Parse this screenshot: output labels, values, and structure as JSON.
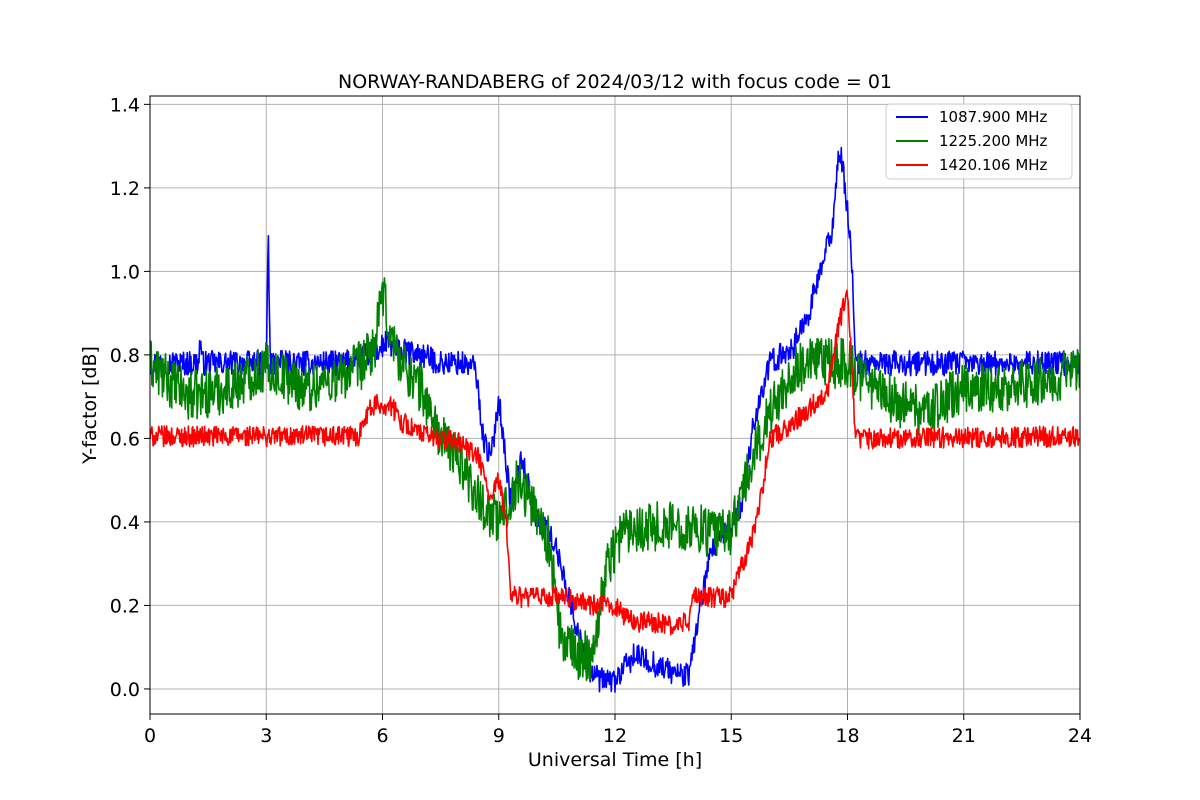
{
  "chart_data": {
    "type": "line",
    "title": "NORWAY-RANDABERG of 2024/03/12 with focus code = 01",
    "xlabel": "Universal Time [h]",
    "ylabel": "Y-factor [dB]",
    "xlim": [
      0,
      24
    ],
    "ylim": [
      -0.06,
      1.42
    ],
    "xticks": [
      0,
      3,
      6,
      9,
      12,
      15,
      18,
      21,
      24
    ],
    "xtick_labels": [
      "0",
      "3",
      "6",
      "9",
      "12",
      "15",
      "18",
      "21",
      "24"
    ],
    "yticks": [
      0.0,
      0.2,
      0.4,
      0.6,
      0.8,
      1.0,
      1.2,
      1.4
    ],
    "ytick_labels": [
      "0.0",
      "0.2",
      "0.4",
      "0.6",
      "0.8",
      "1.0",
      "1.2",
      "1.4"
    ],
    "grid": true,
    "legend_position": "top-right",
    "series": [
      {
        "name": "1087.900 MHz",
        "color": "#0000ff",
        "noise": 0.03,
        "x": [
          0,
          0.3,
          1.25,
          1.3,
          1.35,
          3.0,
          3.05,
          3.1,
          5.0,
          5.6,
          5.9,
          6.1,
          6.4,
          7.0,
          7.5,
          8.0,
          8.4,
          8.6,
          8.8,
          9.0,
          9.3,
          9.6,
          10.0,
          10.3,
          10.6,
          11.0,
          11.3,
          11.6,
          12.0,
          12.5,
          13.0,
          13.5,
          13.9,
          14.2,
          14.5,
          15.0,
          15.3,
          15.6,
          16.0,
          16.3,
          16.6,
          17.0,
          17.3,
          17.6,
          17.8,
          18.0,
          18.1,
          18.2,
          24
        ],
        "y": [
          0.78,
          0.78,
          0.78,
          0.84,
          0.78,
          0.78,
          1.1,
          0.78,
          0.78,
          0.8,
          0.81,
          0.83,
          0.81,
          0.8,
          0.78,
          0.78,
          0.77,
          0.6,
          0.55,
          0.7,
          0.45,
          0.55,
          0.4,
          0.38,
          0.3,
          0.15,
          0.05,
          0.02,
          0.02,
          0.08,
          0.06,
          0.04,
          0.03,
          0.2,
          0.33,
          0.39,
          0.45,
          0.65,
          0.78,
          0.8,
          0.82,
          0.9,
          1.0,
          1.1,
          1.3,
          1.15,
          1.05,
          0.78,
          0.78
        ]
      },
      {
        "name": "1225.200 MHz",
        "color": "#008000",
        "noise": 0.06,
        "x": [
          0,
          0.3,
          1.0,
          2.0,
          3.0,
          4.0,
          5.0,
          5.5,
          5.8,
          6.0,
          6.2,
          6.5,
          7.0,
          7.5,
          8.0,
          8.5,
          9.0,
          9.5,
          10.0,
          10.3,
          10.6,
          11.0,
          11.4,
          11.8,
          12.2,
          12.5,
          13.0,
          13.5,
          14.0,
          14.5,
          15.0,
          15.4,
          15.8,
          16.2,
          16.6,
          17.0,
          17.5,
          18.0,
          18.2,
          19.0,
          20.0,
          21.0,
          22.0,
          23.0,
          24
        ],
        "y": [
          0.78,
          0.75,
          0.7,
          0.72,
          0.77,
          0.72,
          0.75,
          0.78,
          0.82,
          0.95,
          0.85,
          0.78,
          0.72,
          0.6,
          0.55,
          0.45,
          0.4,
          0.5,
          0.42,
          0.35,
          0.12,
          0.08,
          0.08,
          0.3,
          0.38,
          0.39,
          0.39,
          0.39,
          0.39,
          0.37,
          0.38,
          0.5,
          0.62,
          0.7,
          0.76,
          0.78,
          0.78,
          0.78,
          0.76,
          0.7,
          0.66,
          0.72,
          0.72,
          0.74,
          0.76
        ]
      },
      {
        "name": "1420.106 MHz",
        "color": "#ff0000",
        "noise": 0.025,
        "x": [
          0,
          5.4,
          5.5,
          5.8,
          6.2,
          6.5,
          7.0,
          7.5,
          8.0,
          8.5,
          8.8,
          9.0,
          9.2,
          9.3,
          9.5,
          10.5,
          11.0,
          11.5,
          12.0,
          12.3,
          12.6,
          13.0,
          13.5,
          13.9,
          14.0,
          15.0,
          15.2,
          15.4,
          15.6,
          15.8,
          16.0,
          16.5,
          17.0,
          17.5,
          17.8,
          18.0,
          18.1,
          18.2,
          24
        ],
        "y": [
          0.605,
          0.605,
          0.65,
          0.68,
          0.68,
          0.64,
          0.61,
          0.6,
          0.59,
          0.55,
          0.45,
          0.5,
          0.4,
          0.23,
          0.22,
          0.22,
          0.21,
          0.2,
          0.2,
          0.17,
          0.16,
          0.16,
          0.15,
          0.16,
          0.22,
          0.22,
          0.28,
          0.32,
          0.38,
          0.48,
          0.6,
          0.63,
          0.67,
          0.72,
          0.88,
          0.95,
          0.8,
          0.6,
          0.605
        ]
      }
    ]
  }
}
